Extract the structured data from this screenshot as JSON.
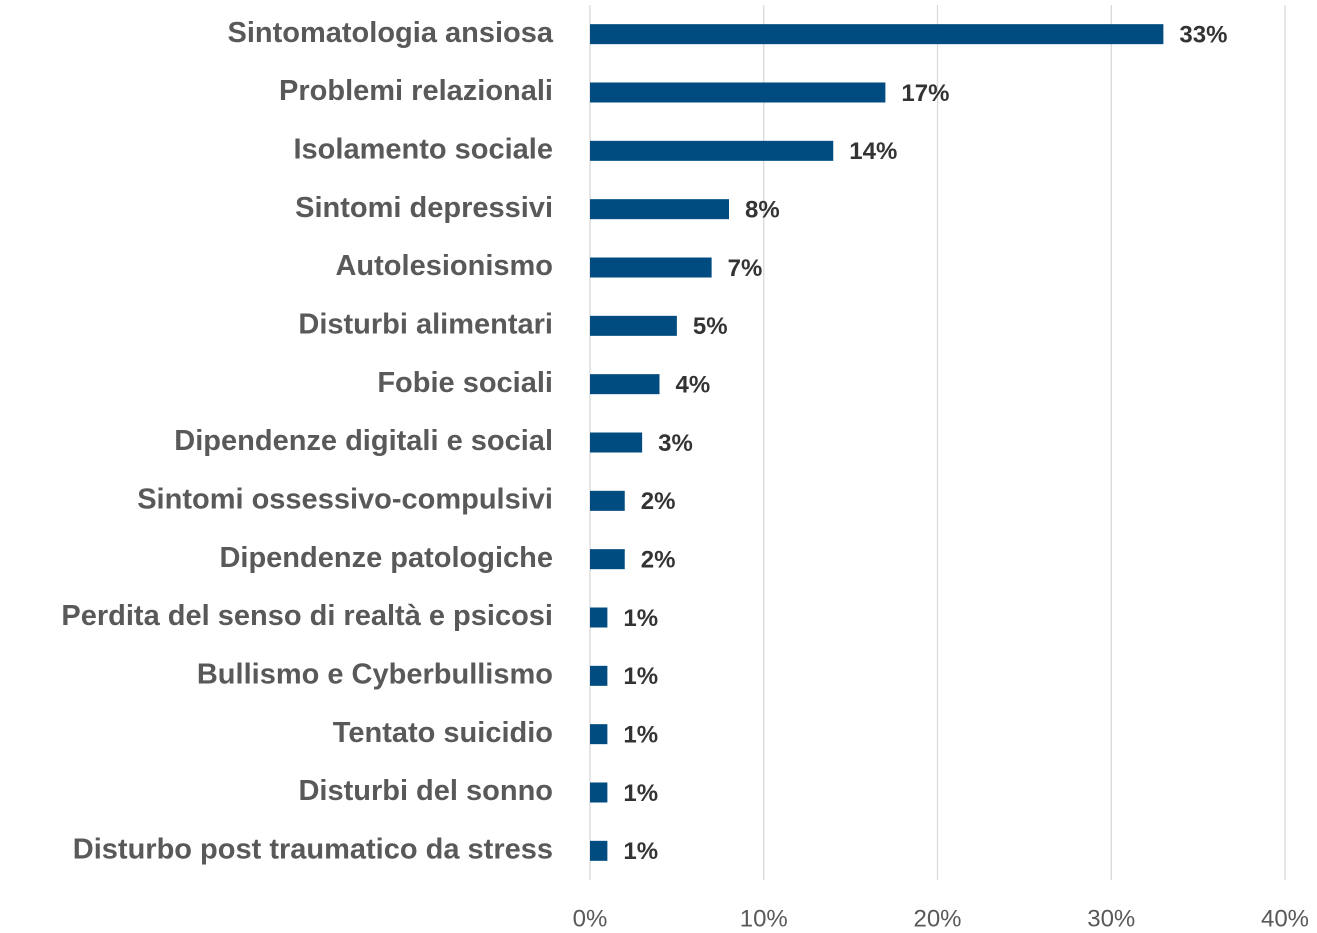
{
  "chart_data": {
    "type": "bar",
    "orientation": "horizontal",
    "categories": [
      "Sintomatologia ansiosa",
      "Problemi relazionali",
      "Isolamento sociale",
      "Sintomi depressivi",
      "Autolesionismo",
      "Disturbi alimentari",
      "Fobie sociali",
      "Dipendenze digitali e social",
      "Sintomi ossessivo-compulsivi",
      "Dipendenze patologiche",
      "Perdita del senso di realtà e psicosi",
      "Bullismo e Cyberbullismo",
      "Tentato suicidio",
      "Disturbi del sonno",
      "Disturbo post traumatico da stress"
    ],
    "values": [
      33,
      17,
      14,
      8,
      7,
      5,
      4,
      3,
      2,
      2,
      1,
      1,
      1,
      1,
      1
    ],
    "value_labels": [
      "33%",
      "17%",
      "14%",
      "8%",
      "7%",
      "5%",
      "4%",
      "3%",
      "2%",
      "2%",
      "1%",
      "1%",
      "1%",
      "1%",
      "1%"
    ],
    "color": "#004b7f",
    "xlim": [
      0,
      40
    ],
    "xticks": [
      {
        "value": 0,
        "label": "0%"
      },
      {
        "value": 10,
        "label": "10%"
      },
      {
        "value": 20,
        "label": "20%"
      },
      {
        "value": 30,
        "label": "30%"
      },
      {
        "value": 40,
        "label": "40%"
      }
    ],
    "grid": true
  }
}
